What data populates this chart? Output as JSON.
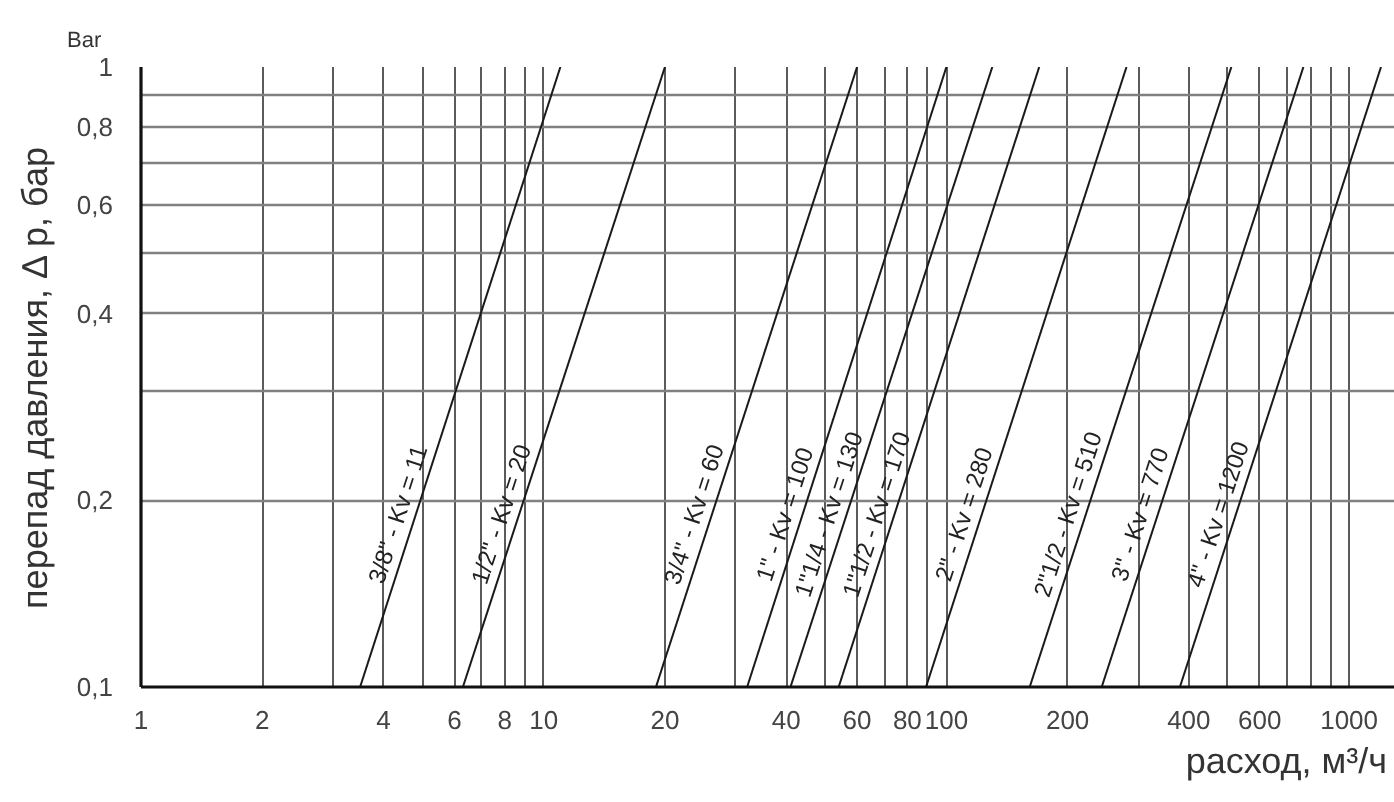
{
  "chart_data": {
    "type": "line",
    "xlabel": "расход, м³/ч",
    "ylabel": "перепад давления, Δ p, бар",
    "annotations": [
      "Bar"
    ],
    "log": "xy",
    "grid": true,
    "xlim": [
      1,
      1300
    ],
    "ylim": [
      0.1,
      1
    ],
    "xticks": [
      1,
      2,
      {
        "value": 3,
        "label": null
      },
      4,
      {
        "value": 5,
        "label": null
      },
      6,
      {
        "value": 7,
        "label": null
      },
      8,
      {
        "value": 9,
        "label": null
      },
      10,
      20,
      {
        "value": 30,
        "label": null
      },
      40,
      {
        "value": 50,
        "label": null
      },
      60,
      {
        "value": 70,
        "label": null
      },
      80,
      {
        "value": 90,
        "label": null
      },
      100,
      200,
      {
        "value": 300,
        "label": null
      },
      400,
      {
        "value": 500,
        "label": null
      },
      600,
      {
        "value": 700,
        "label": null
      },
      {
        "value": 800,
        "label": null
      },
      {
        "value": 900,
        "label": null
      },
      1000
    ],
    "yticks": [
      {
        "value": 0.1,
        "label": "0,1"
      },
      {
        "value": 0.2,
        "label": "0,2"
      },
      {
        "value": 0.3,
        "label": null
      },
      {
        "value": 0.4,
        "label": "0,4"
      },
      {
        "value": 0.5,
        "label": null
      },
      {
        "value": 0.6,
        "label": "0,6"
      },
      {
        "value": 0.7,
        "label": null
      },
      {
        "value": 0.8,
        "label": "0,8"
      },
      {
        "value": 0.9,
        "label": null
      },
      1
    ],
    "series": [
      {
        "name": "3/8\" - Kv = 11",
        "color": "#1a1a1a",
        "x": [
          3.5,
          11
        ],
        "values": [
          0.1,
          1
        ]
      },
      {
        "name": "1/2\" - Kv = 20",
        "color": "#1a1a1a",
        "x": [
          6.3,
          20
        ],
        "values": [
          0.1,
          1
        ]
      },
      {
        "name": "3/4\" - Kv = 60",
        "color": "#1a1a1a",
        "x": [
          19,
          60
        ],
        "values": [
          0.1,
          1
        ]
      },
      {
        "name": "1\" - Kv = 100",
        "color": "#1a1a1a",
        "x": [
          32,
          100
        ],
        "values": [
          0.1,
          1
        ]
      },
      {
        "name": "1\"1/4 - Kv = 130",
        "color": "#1a1a1a",
        "x": [
          41,
          130
        ],
        "values": [
          0.1,
          1
        ]
      },
      {
        "name": "1\"1/2 - Kv = 170",
        "color": "#1a1a1a",
        "x": [
          54,
          170
        ],
        "values": [
          0.1,
          1
        ]
      },
      {
        "name": "2\" - Kv = 280",
        "color": "#1a1a1a",
        "x": [
          89,
          280
        ],
        "values": [
          0.1,
          1
        ]
      },
      {
        "name": "2\"1/2 - Kv = 510",
        "color": "#1a1a1a",
        "x": [
          161,
          510
        ],
        "values": [
          0.1,
          1
        ]
      },
      {
        "name": "3\" - Kv = 770",
        "color": "#1a1a1a",
        "x": [
          243,
          770
        ],
        "values": [
          0.1,
          1
        ]
      },
      {
        "name": "4\" - Kv = 1200",
        "color": "#1a1a1a",
        "x": [
          380,
          1200
        ],
        "values": [
          0.1,
          1
        ]
      }
    ]
  }
}
